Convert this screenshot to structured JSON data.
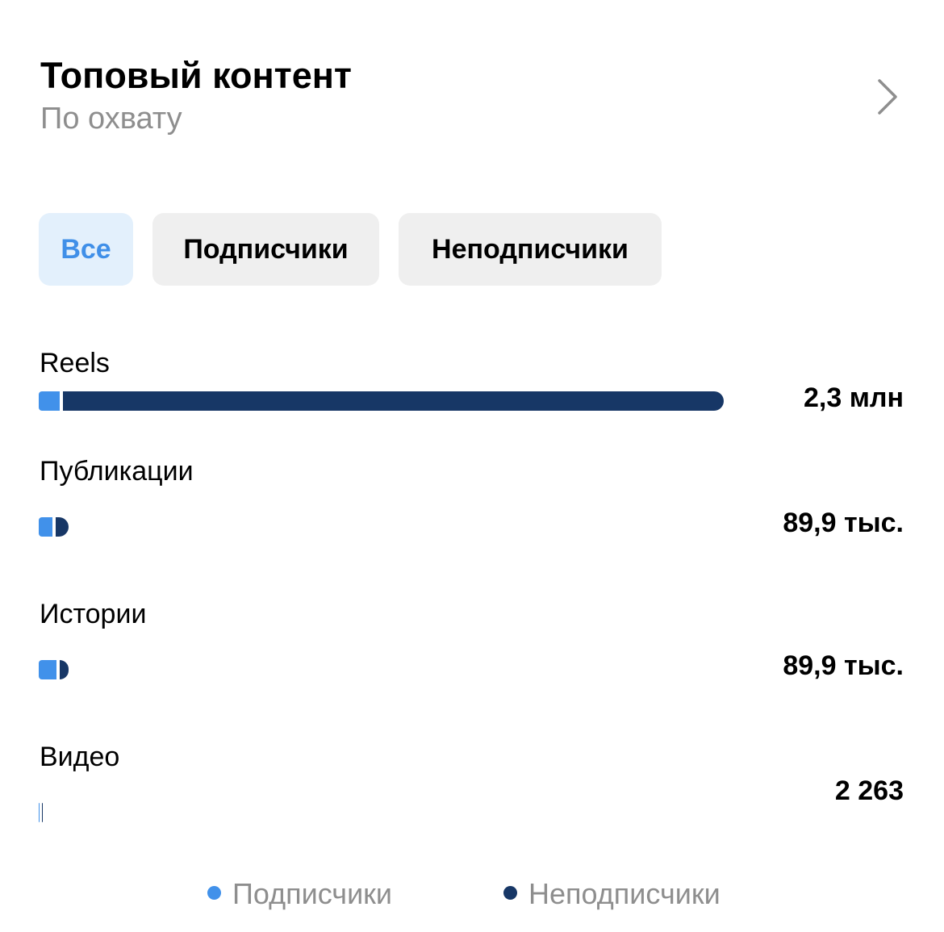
{
  "header": {
    "title": "Топовый контент",
    "subtitle": "По охвату"
  },
  "tabs": [
    "Все",
    "Подписчики",
    "Неподписчики"
  ],
  "chart_data": {
    "type": "bar",
    "orientation": "horizontal",
    "stacked": true,
    "categories": [
      "Reels",
      "Публикации",
      "Истории",
      "Видео"
    ],
    "series": [
      {
        "name": "Подписчики",
        "color": "#4191ea",
        "values": [
          70000,
          45000,
          60000,
          1200
        ]
      },
      {
        "name": "Неподписчики",
        "color": "#173766",
        "values": [
          2230000,
          44900,
          29900,
          1063
        ]
      }
    ],
    "totals": [
      2300000,
      89900,
      89900,
      2263
    ],
    "total_labels": [
      "2,3 млн",
      "89,9 тыс.",
      "89,9 тыс.",
      "2 263"
    ],
    "xlim": [
      0,
      2300000
    ]
  }
}
